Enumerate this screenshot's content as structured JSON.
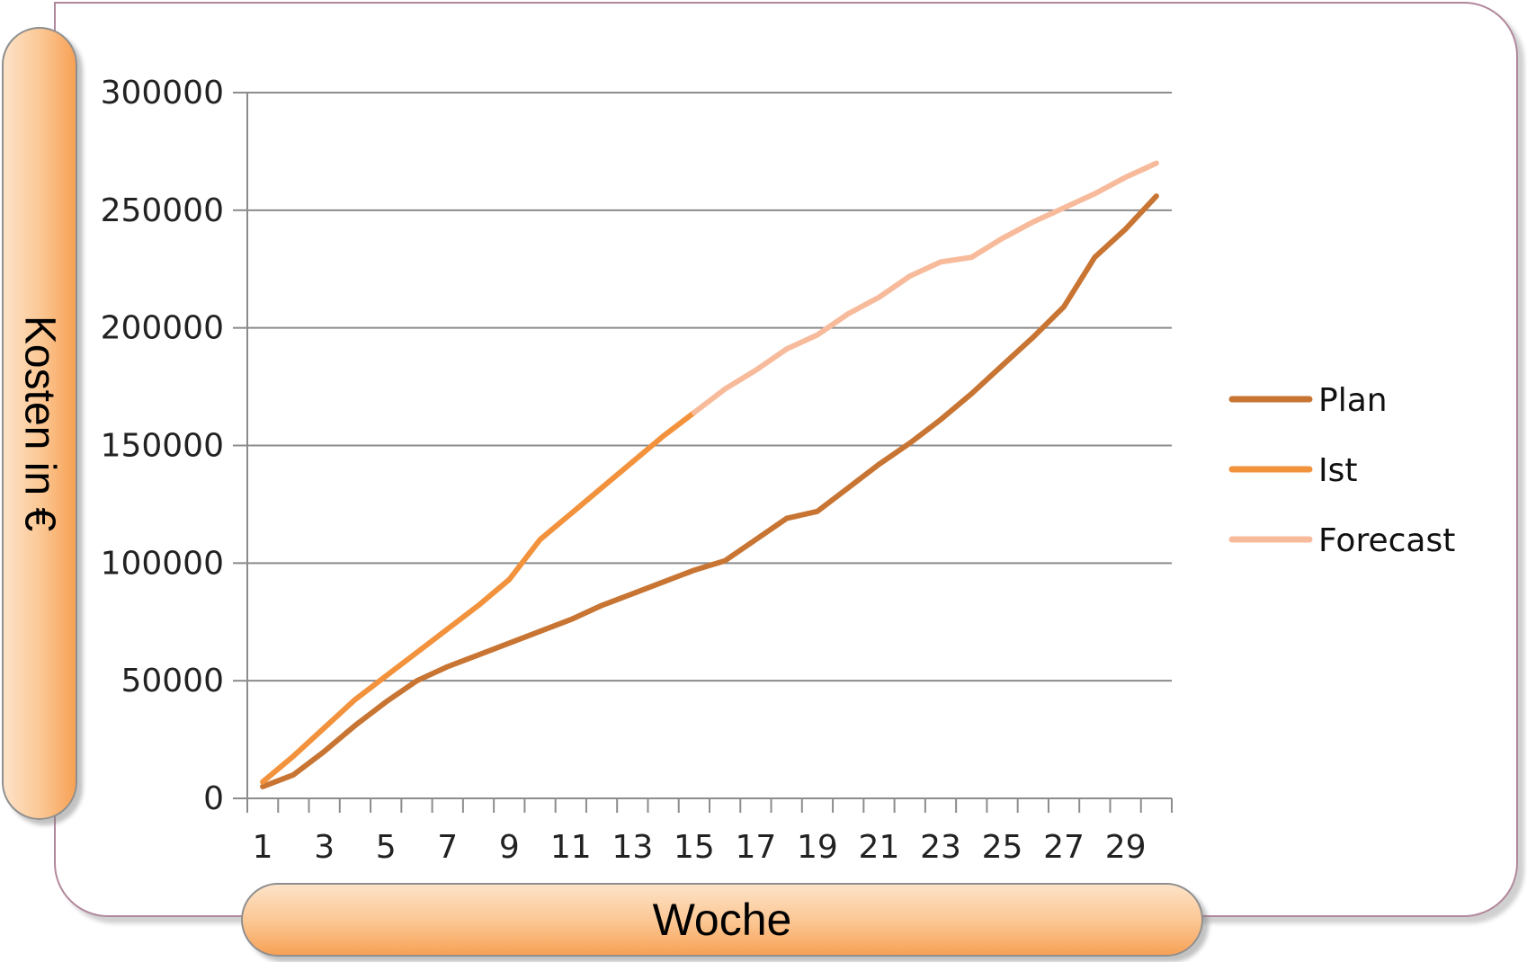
{
  "chart_data": {
    "type": "line",
    "xlabel": "Woche",
    "ylabel": "Kosten in €",
    "xlim": [
      1,
      30
    ],
    "ylim": [
      0,
      300000
    ],
    "yticks": [
      0,
      50000,
      100000,
      150000,
      200000,
      250000,
      300000
    ],
    "xticks": [
      1,
      3,
      5,
      7,
      9,
      11,
      13,
      15,
      17,
      19,
      21,
      23,
      25,
      27,
      29
    ],
    "grid": "horizontal",
    "legend_position": "right",
    "series": [
      {
        "name": "Plan",
        "color": "#c87533",
        "x": [
          1,
          2,
          3,
          4,
          5,
          6,
          7,
          8,
          9,
          10,
          11,
          12,
          13,
          14,
          15,
          16,
          17,
          18,
          19,
          20,
          21,
          22,
          23,
          24,
          25,
          26,
          27,
          28,
          29,
          30
        ],
        "values": [
          5000,
          10000,
          20000,
          31000,
          41000,
          50000,
          56000,
          61000,
          66000,
          71000,
          76000,
          82000,
          87000,
          92000,
          97000,
          101000,
          110000,
          119000,
          122000,
          132000,
          142000,
          151000,
          161000,
          172000,
          184000,
          196000,
          209000,
          230000,
          242000,
          256000
        ]
      },
      {
        "name": "Ist",
        "color": "#f2923c",
        "x": [
          1,
          2,
          3,
          4,
          5,
          6,
          7,
          8,
          9,
          10,
          11,
          12,
          13,
          14,
          15
        ],
        "values": [
          7000,
          18000,
          30000,
          42000,
          52000,
          62000,
          72000,
          82000,
          93000,
          110000,
          121000,
          132000,
          143000,
          154000,
          164000
        ]
      },
      {
        "name": "Forecast",
        "color": "#f7bb9c",
        "x": [
          15,
          16,
          17,
          18,
          19,
          20,
          21,
          22,
          23,
          24,
          25,
          26,
          27,
          28,
          29,
          30
        ],
        "values": [
          164000,
          174000,
          182000,
          191000,
          197000,
          206000,
          213000,
          222000,
          228000,
          230000,
          238000,
          245000,
          251000,
          257000,
          264000,
          270000
        ]
      }
    ]
  }
}
